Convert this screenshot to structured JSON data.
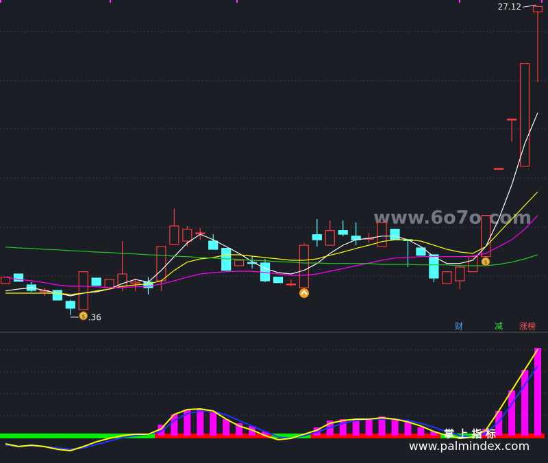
{
  "chart_data": {
    "type": "candlestick",
    "open": [
      21.05,
      21.26,
      21.02,
      20.87,
      20.9,
      20.66,
      20.48,
      21.17,
      20.96,
      20.99,
      21.05,
      21.08,
      21.11,
      21.91,
      21.98,
      22.16,
      21.98,
      21.82,
      21.44,
      21.51,
      21.5,
      21.19,
      21.04,
      20.96,
      22.12,
      21.89,
      22.21,
      22.09,
      22.04,
      21.86,
      22.24,
      22.01,
      21.83,
      21.68,
      21.05,
      21.11,
      21.31,
      21.64,
      23.57,
      24.65,
      23.62,
      27.0
    ],
    "close": [
      21.19,
      21.1,
      20.9,
      20.9,
      20.69,
      20.51,
      21.31,
      21.01,
      21.14,
      21.26,
      21.08,
      20.96,
      21.86,
      22.31,
      22.24,
      22.16,
      21.8,
      21.34,
      21.56,
      21.49,
      21.11,
      21.07,
      21.04,
      21.89,
      22.01,
      22.21,
      22.13,
      22.01,
      22.04,
      22.39,
      22.01,
      21.99,
      21.67,
      21.17,
      21.31,
      21.41,
      21.64,
      22.54,
      23.57,
      24.65,
      25.87,
      27.12
    ],
    "low": [
      21.05,
      21.1,
      20.87,
      20.78,
      20.69,
      20.36,
      20.48,
      21.01,
      20.96,
      20.89,
      20.89,
      20.81,
      20.89,
      21.91,
      21.86,
      22.01,
      21.8,
      21.34,
      21.44,
      21.38,
      21.08,
      21.07,
      20.99,
      20.96,
      21.86,
      21.89,
      22.09,
      21.89,
      21.94,
      21.86,
      22.01,
      21.41,
      21.67,
      21.08,
      21.05,
      20.93,
      21.31,
      21.49,
      23.57,
      24.16,
      23.62,
      25.46
    ],
    "high": [
      21.19,
      21.26,
      21.08,
      20.96,
      20.9,
      20.69,
      21.31,
      21.17,
      21.14,
      21.98,
      21.14,
      21.19,
      21.86,
      22.69,
      22.31,
      22.27,
      22.13,
      21.82,
      21.56,
      21.64,
      21.59,
      21.19,
      21.14,
      21.94,
      22.46,
      22.43,
      22.43,
      22.39,
      22.16,
      22.39,
      22.24,
      22.01,
      21.83,
      21.68,
      21.31,
      21.44,
      21.64,
      22.54,
      23.57,
      24.65,
      25.87,
      27.12
    ],
    "ylim": [
      20,
      27.26
    ],
    "up_color": "#ff3b3b",
    "down_color": "#54ffff",
    "low_label": ".36",
    "ma": [
      {
        "color": "#ffffff",
        "values": [
          20.89,
          20.93,
          20.96,
          20.9,
          20.84,
          20.78,
          20.84,
          20.87,
          20.93,
          21.05,
          21.14,
          21.08,
          21.34,
          21.64,
          21.94,
          22.13,
          22.01,
          21.86,
          21.71,
          21.53,
          21.38,
          21.29,
          21.26,
          21.34,
          21.49,
          21.71,
          21.89,
          22.01,
          22.04,
          22.09,
          22.09,
          22.01,
          21.86,
          21.64,
          21.49,
          21.49,
          21.56,
          21.86,
          22.46,
          23.21,
          24.11,
          24.79
        ]
      },
      {
        "color": "#ffff00",
        "values": [
          20.84,
          20.84,
          20.84,
          20.84,
          20.84,
          20.81,
          20.84,
          20.89,
          20.93,
          20.99,
          21.02,
          21.04,
          21.11,
          21.34,
          21.52,
          21.59,
          21.62,
          21.68,
          21.68,
          21.65,
          21.62,
          21.59,
          21.56,
          21.56,
          21.59,
          21.67,
          21.74,
          21.82,
          21.89,
          21.97,
          22.01,
          22.01,
          21.98,
          21.89,
          21.8,
          21.74,
          21.71,
          21.86,
          22.16,
          22.46,
          22.76,
          23.06
        ]
      },
      {
        "color": "#ff00ff",
        "values": [
          21.19,
          21.14,
          21.11,
          21.07,
          21.02,
          20.99,
          20.99,
          20.98,
          20.96,
          20.96,
          20.98,
          20.99,
          21.04,
          21.11,
          21.19,
          21.26,
          21.29,
          21.31,
          21.32,
          21.32,
          21.29,
          21.26,
          21.23,
          21.23,
          21.26,
          21.32,
          21.38,
          21.44,
          21.5,
          21.56,
          21.61,
          21.62,
          21.64,
          21.64,
          21.64,
          21.64,
          21.65,
          21.71,
          21.86,
          22.01,
          22.24,
          22.54
        ]
      },
      {
        "color": "#22cc22",
        "values": [
          21.85,
          21.83,
          21.82,
          21.8,
          21.79,
          21.77,
          21.76,
          21.74,
          21.73,
          21.71,
          21.7,
          21.68,
          21.67,
          21.65,
          21.64,
          21.62,
          21.61,
          21.59,
          21.58,
          21.56,
          21.55,
          21.53,
          21.52,
          21.5,
          21.5,
          21.49,
          21.49,
          21.49,
          21.49,
          21.47,
          21.47,
          21.47,
          21.46,
          21.46,
          21.46,
          21.44,
          21.44,
          21.44,
          21.47,
          21.52,
          21.59,
          21.68
        ]
      }
    ],
    "indicator": {
      "type": "bar",
      "ylim": [
        -40,
        136
      ],
      "color": "#ff00ff",
      "positive_color": "#ff0000",
      "negative_color": "#00ee00",
      "values": [
        null,
        null,
        null,
        null,
        null,
        null,
        null,
        null,
        null,
        null,
        null,
        null,
        16,
        31,
        38,
        38,
        34,
        24,
        18,
        14,
        6,
        null,
        null,
        null,
        12,
        22,
        24,
        24,
        24,
        28,
        24,
        20,
        12,
        6,
        null,
        null,
        null,
        10,
        36,
        66,
        96,
        128
      ],
      "lines": [
        {
          "color": "#ffff00",
          "values": [
            -12,
            -16,
            -14,
            -16,
            -20,
            -22,
            -16,
            -9,
            -4,
            0,
            2,
            2,
            10,
            31,
            38,
            39,
            36,
            24,
            14,
            8,
            0,
            -6,
            -4,
            2,
            8,
            18,
            22,
            24,
            24,
            26,
            24,
            20,
            14,
            6,
            0,
            -4,
            -2,
            8,
            36,
            66,
            96,
            126
          ]
        },
        {
          "color": "#2233ff",
          "values": [
            -14,
            -15,
            -15,
            -16,
            -18,
            -20,
            -18,
            -13,
            -8,
            -3,
            0,
            2,
            6,
            22,
            32,
            36,
            36,
            30,
            22,
            14,
            6,
            -2,
            -4,
            0,
            5,
            12,
            18,
            22,
            24,
            24,
            24,
            22,
            18,
            12,
            6,
            0,
            -2,
            3,
            20,
            46,
            74,
            102
          ]
        }
      ]
    },
    "badges": [
      {
        "text": "财",
        "color": "#4aa3ff"
      },
      {
        "text": "减",
        "color": "#33dd33"
      },
      {
        "text": "涨榜",
        "color": "#ff5555"
      }
    ]
  },
  "watermarks": [
    "www.6o7o.com",
    "掌 上 指 标",
    "www.palmindex.com"
  ]
}
